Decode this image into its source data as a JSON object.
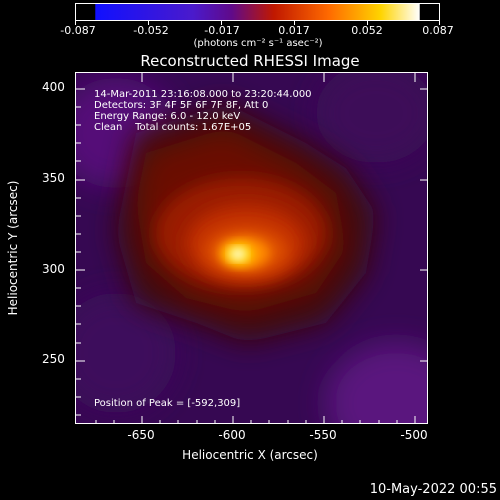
{
  "colorbar": {
    "tick_labels": [
      "-0.087",
      "-0.052",
      "-0.017",
      "0.017",
      "0.052",
      "0.087"
    ],
    "units": "(photons cm⁻² s⁻¹ asec⁻²)",
    "colors": [
      "#1010ff",
      "#4a1acc",
      "#600a8a",
      "#d02000",
      "#ff7a00",
      "#ffd400",
      "#ffffff"
    ]
  },
  "title": "Reconstructed RHESSI Image",
  "annotations": {
    "time": "14-Mar-2011 23:16:08.000 to 23:20:44.000",
    "detectors": "Detectors: 3F 4F 5F 6F 7F 8F, Att 0",
    "energy": "Energy Range: 6.0 - 12.0 keV",
    "clean": "Clean    Total counts: 1.67E+05",
    "peak": "Position of Peak = [-592,309]"
  },
  "axes": {
    "xlabel": "Heliocentric X (arcsec)",
    "ylabel": "Heliocentric Y (arcsec)",
    "x_tick_labels": [
      "-650",
      "-600",
      "-550",
      "-500"
    ],
    "y_tick_labels": [
      "400",
      "350",
      "300",
      "250"
    ]
  },
  "footer": {
    "date": "10-May-2022 00:55"
  }
}
